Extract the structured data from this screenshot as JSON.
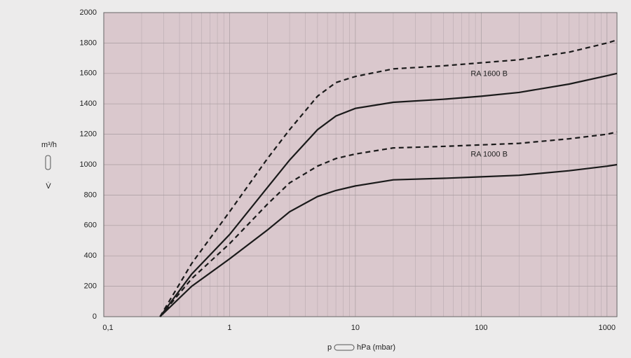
{
  "chart_data": {
    "type": "line",
    "x_label": "hPa (mbar)",
    "x_symbol": "p",
    "y_label": "m³/h",
    "y_symbol": "V̇",
    "xscale": "log",
    "xlim": [
      0.1,
      1200
    ],
    "ylim": [
      0,
      2000
    ],
    "xticks": [
      {
        "value": 0.1,
        "label": "0,1"
      },
      1,
      10,
      100,
      1000
    ],
    "yticks": [
      0,
      200,
      400,
      600,
      800,
      1000,
      1200,
      1400,
      1600,
      1800,
      2000
    ],
    "grid": true,
    "minor_grid": true,
    "series": [
      {
        "color": "#1a1a1a",
        "style": "dashed",
        "x": [
          0.28,
          0.5,
          1,
          2,
          3,
          5,
          7,
          10,
          20,
          50,
          100,
          200,
          500,
          1000,
          1200
        ],
        "values": [
          0,
          350,
          690,
          1040,
          1230,
          1450,
          1540,
          1580,
          1630,
          1650,
          1670,
          1690,
          1740,
          1800,
          1820
        ]
      },
      {
        "name": "RA 1600 B",
        "color": "#1a1a1a",
        "style": "solid",
        "x": [
          0.28,
          0.5,
          1,
          2,
          3,
          5,
          7,
          10,
          20,
          50,
          100,
          200,
          500,
          1000,
          1200
        ],
        "values": [
          0,
          280,
          540,
          850,
          1030,
          1230,
          1320,
          1370,
          1410,
          1430,
          1450,
          1475,
          1530,
          1585,
          1600
        ]
      },
      {
        "color": "#1a1a1a",
        "style": "dashed",
        "x": [
          0.28,
          0.5,
          1,
          2,
          3,
          5,
          7,
          10,
          20,
          50,
          100,
          200,
          500,
          1000,
          1200
        ],
        "values": [
          0,
          250,
          480,
          740,
          880,
          990,
          1040,
          1070,
          1110,
          1120,
          1130,
          1140,
          1170,
          1200,
          1215
        ]
      },
      {
        "name": "RA 1000 B",
        "color": "#1a1a1a",
        "style": "solid",
        "x": [
          0.28,
          0.5,
          1,
          2,
          3,
          5,
          7,
          10,
          20,
          50,
          100,
          200,
          500,
          1000,
          1200
        ],
        "values": [
          0,
          200,
          380,
          570,
          690,
          790,
          830,
          860,
          900,
          910,
          920,
          930,
          960,
          990,
          1000
        ]
      }
    ]
  }
}
